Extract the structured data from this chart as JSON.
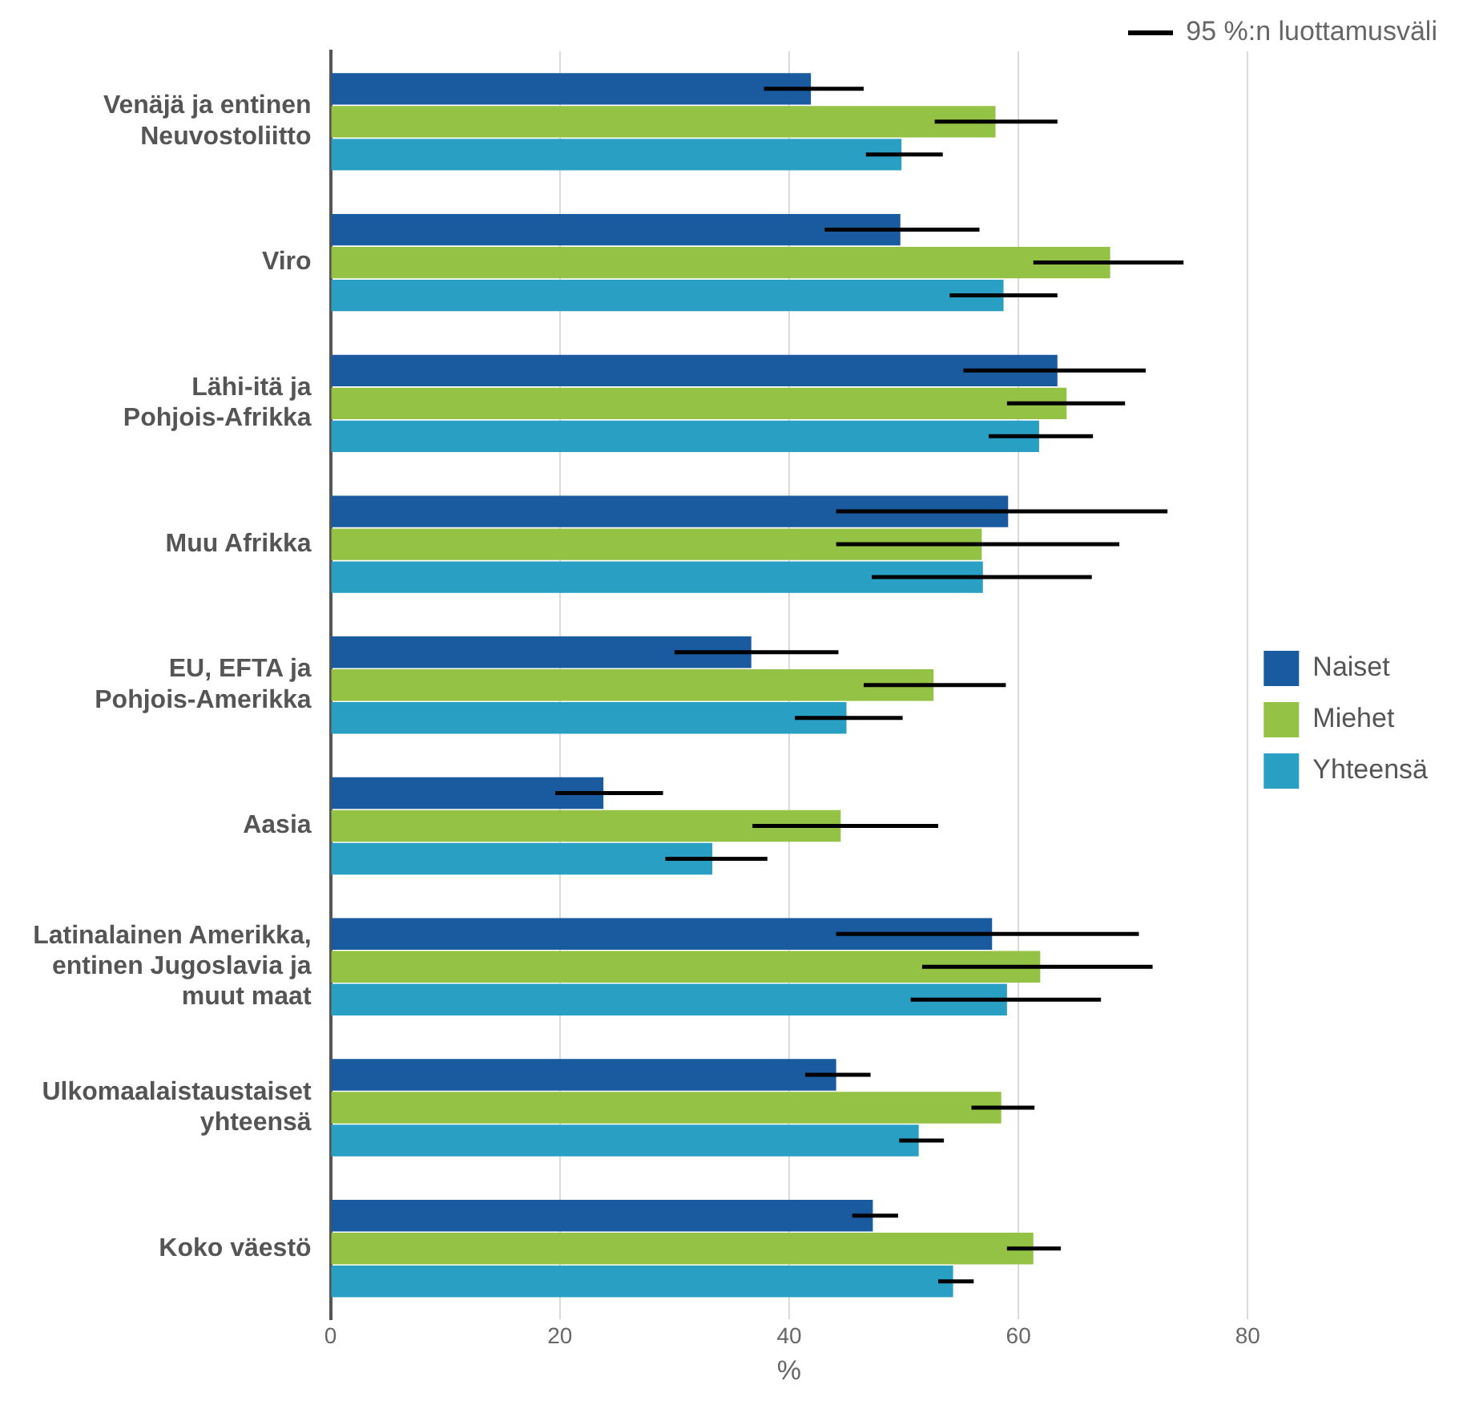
{
  "chart_data": {
    "type": "bar",
    "orientation": "horizontal",
    "xlabel": "%",
    "annotations": [
      "95 %:n luottamusväli"
    ],
    "categories": [
      "Venäjä ja entinen Neuvostoliitto",
      "Viro",
      "Lähi-itä ja Pohjois-Afrikka",
      "Muu Afrikka",
      "EU, EFTA ja Pohjois-Amerikka",
      "Aasia",
      "Latinalainen Amerikka, entinen Jugoslavia ja muut maat",
      "Ulkomaalaistaustaiset yhteensä",
      "Koko väestö"
    ],
    "series": [
      {
        "name": "Naiset",
        "color": "#1a5a9e",
        "values": [
          41.9,
          49.7,
          63.4,
          59.1,
          36.7,
          23.8,
          57.7,
          44.1,
          47.3
        ],
        "errors": [
          [
            37.8,
            46.5
          ],
          [
            43.1,
            56.6
          ],
          [
            55.2,
            71.1
          ],
          [
            44.1,
            73.0
          ],
          [
            30.0,
            44.3
          ],
          [
            19.6,
            29.0
          ],
          [
            44.1,
            70.5
          ],
          [
            41.4,
            47.1
          ],
          [
            45.5,
            49.5
          ]
        ]
      },
      {
        "name": "Miehet",
        "color": "#94c245",
        "values": [
          58.0,
          68.0,
          64.2,
          56.8,
          52.6,
          44.5,
          61.9,
          58.5,
          61.3
        ],
        "errors": [
          [
            52.7,
            63.4
          ],
          [
            61.3,
            74.4
          ],
          [
            59.0,
            69.3
          ],
          [
            44.1,
            68.8
          ],
          [
            46.5,
            58.9
          ],
          [
            36.8,
            53.0
          ],
          [
            51.6,
            71.7
          ],
          [
            55.9,
            61.4
          ],
          [
            59.0,
            63.7
          ]
        ]
      },
      {
        "name": "Yhteensä",
        "color": "#2a9fc4",
        "values": [
          49.8,
          58.7,
          61.8,
          56.9,
          45.0,
          33.3,
          59.0,
          51.3,
          54.3
        ],
        "errors": [
          [
            46.7,
            53.4
          ],
          [
            54.0,
            63.4
          ],
          [
            57.4,
            66.5
          ],
          [
            47.2,
            66.4
          ],
          [
            40.5,
            49.9
          ],
          [
            29.2,
            38.1
          ],
          [
            50.6,
            67.2
          ],
          [
            49.6,
            53.5
          ],
          [
            53.0,
            56.1
          ]
        ]
      }
    ],
    "xlim": [
      0,
      80
    ],
    "xticks": [
      0,
      20,
      40,
      60,
      80
    ],
    "grid": "x",
    "legend": "right"
  }
}
